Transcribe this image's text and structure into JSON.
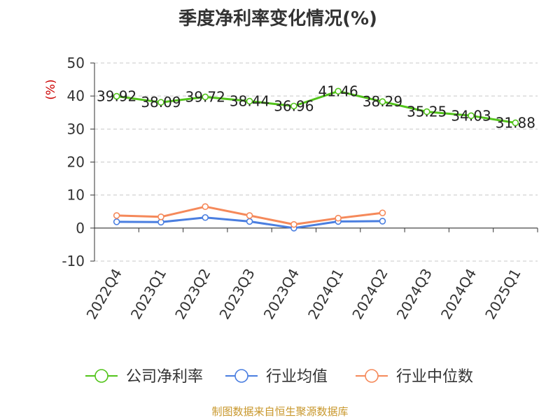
{
  "title": "季度净利率变化情况(%)",
  "ylabel": "(%)",
  "source": "制图数据来自恒生聚源数据库",
  "colors": {
    "series_0": "#52c41a",
    "series_1": "#4a7ee0",
    "series_2": "#f5895a"
  },
  "chart_data": {
    "type": "line",
    "categories": [
      "2022Q4",
      "2023Q1",
      "2023Q2",
      "2023Q3",
      "2023Q4",
      "2024Q1",
      "2024Q2",
      "2024Q3",
      "2024Q4",
      "2025Q1"
    ],
    "ylim": [
      -10,
      50
    ],
    "yticks": [
      -10,
      0,
      10,
      20,
      30,
      40,
      50
    ],
    "grid": true,
    "legend_position": "bottom",
    "series": [
      {
        "name": "公司净利率",
        "values": [
          39.92,
          38.09,
          39.72,
          38.44,
          36.96,
          41.46,
          38.29,
          35.25,
          34.03,
          31.88
        ],
        "labels": true
      },
      {
        "name": "行业均值",
        "values": [
          1.9,
          1.8,
          3.2,
          2.0,
          0.0,
          2.0,
          2.1,
          null,
          null,
          null
        ],
        "labels": false
      },
      {
        "name": "行业中位数",
        "values": [
          3.8,
          3.4,
          6.5,
          3.8,
          1.1,
          3.0,
          4.6,
          null,
          null,
          null
        ],
        "labels": false
      }
    ]
  }
}
